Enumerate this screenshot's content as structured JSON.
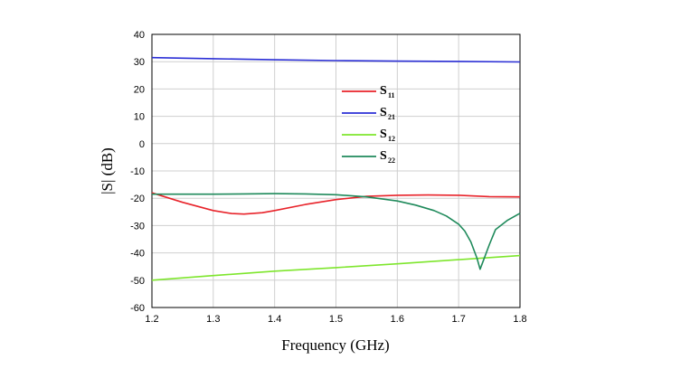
{
  "chart_data": {
    "type": "line",
    "xlabel": "Frequency (GHz)",
    "ylabel": "|S| (dB)",
    "xlim": [
      1.2,
      1.8
    ],
    "ylim": [
      -60,
      40
    ],
    "xticks": [
      "1.2",
      "1.3",
      "1.4",
      "1.5",
      "1.6",
      "1.7",
      "1.8"
    ],
    "yticks": [
      "40",
      "30",
      "20",
      "10",
      "0",
      "-10",
      "-20",
      "-30",
      "-40",
      "-50",
      "-60"
    ],
    "grid": true,
    "legend_position": "upper-center",
    "series": [
      {
        "name": "S11",
        "label_main": "S",
        "label_sub": "11",
        "color": "#e8232a",
        "x": [
          1.2,
          1.25,
          1.3,
          1.33,
          1.35,
          1.38,
          1.4,
          1.45,
          1.5,
          1.55,
          1.6,
          1.65,
          1.7,
          1.75,
          1.8
        ],
        "y": [
          -18,
          -21.5,
          -24.5,
          -25.6,
          -25.8,
          -25.3,
          -24.5,
          -22.3,
          -20.5,
          -19.3,
          -18.9,
          -18.8,
          -18.9,
          -19.4,
          -19.5
        ]
      },
      {
        "name": "S21",
        "label_main": "S",
        "label_sub": "21",
        "color": "#2b2fd6",
        "x": [
          1.2,
          1.3,
          1.4,
          1.5,
          1.6,
          1.7,
          1.8
        ],
        "y": [
          31.5,
          31.1,
          30.7,
          30.4,
          30.2,
          30.1,
          29.9
        ]
      },
      {
        "name": "S12",
        "label_main": "S",
        "label_sub": "12",
        "color": "#7ee62d",
        "x": [
          1.2,
          1.3,
          1.4,
          1.5,
          1.6,
          1.7,
          1.8
        ],
        "y": [
          -50,
          -48.3,
          -46.7,
          -45.4,
          -44,
          -42.5,
          -41
        ]
      },
      {
        "name": "S22",
        "label_main": "S",
        "label_sub": "22",
        "color": "#1f8a5b",
        "x": [
          1.2,
          1.3,
          1.35,
          1.4,
          1.45,
          1.5,
          1.55,
          1.6,
          1.63,
          1.66,
          1.68,
          1.7,
          1.71,
          1.72,
          1.73,
          1.735,
          1.74,
          1.75,
          1.76,
          1.78,
          1.8
        ],
        "y": [
          -18.5,
          -18.5,
          -18.4,
          -18.3,
          -18.4,
          -18.7,
          -19.5,
          -21,
          -22.5,
          -24.5,
          -26.5,
          -29.5,
          -32,
          -36,
          -42,
          -46,
          -43,
          -37,
          -31.5,
          -28,
          -25.5
        ]
      }
    ]
  }
}
